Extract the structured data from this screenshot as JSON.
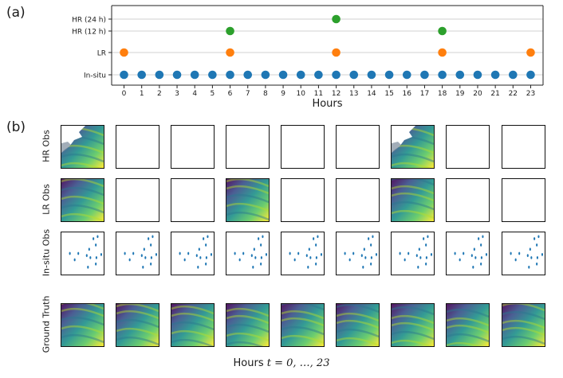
{
  "panel_labels": {
    "a": "(a)",
    "b": "(b)"
  },
  "colors": {
    "insitu": "#1f77b4",
    "lr": "#ff7f0e",
    "hr": "#2ca02c",
    "grid": "#d0d0d0"
  },
  "chart_data": {
    "type": "scatter",
    "xlabel": "Hours",
    "categories": [
      "In-situ",
      "LR",
      "HR (12 h)",
      "HR (24 h)"
    ],
    "x_ticks": [
      0,
      1,
      2,
      3,
      4,
      5,
      6,
      7,
      8,
      9,
      10,
      11,
      12,
      13,
      14,
      15,
      16,
      17,
      18,
      19,
      20,
      21,
      22,
      23
    ],
    "xlim": [
      -0.7,
      23.7
    ],
    "series": [
      {
        "name": "In-situ",
        "x": [
          0,
          1,
          2,
          3,
          4,
          5,
          6,
          7,
          8,
          9,
          10,
          11,
          12,
          13,
          14,
          15,
          16,
          17,
          18,
          19,
          20,
          21,
          22,
          23
        ]
      },
      {
        "name": "LR",
        "x": [
          0,
          6,
          12,
          18,
          23
        ]
      },
      {
        "name": "HR (12 h)",
        "x": [
          6,
          18
        ]
      },
      {
        "name": "HR (24 h)",
        "x": [
          12
        ]
      }
    ],
    "grid": "horizontal"
  },
  "panel_b": {
    "rows": [
      {
        "label": "HR Obs",
        "tiles": [
          "coast",
          "blank",
          "blank",
          "blank",
          "blank",
          "blank",
          "coast",
          "blank",
          "blank"
        ]
      },
      {
        "label": "LR Obs",
        "tiles": [
          "field",
          "blank",
          "blank",
          "field",
          "blank",
          "blank",
          "field",
          "blank",
          "blank"
        ]
      },
      {
        "label": "In-situ Obs",
        "tiles": [
          "dots",
          "dots",
          "dots",
          "dots",
          "dots",
          "dots",
          "dots",
          "dots",
          "dots"
        ]
      },
      {
        "label": "Ground Truth",
        "tiles": [
          "field",
          "field",
          "field",
          "field",
          "field",
          "field",
          "field",
          "field",
          "field"
        ]
      }
    ],
    "caption_prefix": "Hours",
    "caption_math": "t = 0, …, 23"
  }
}
